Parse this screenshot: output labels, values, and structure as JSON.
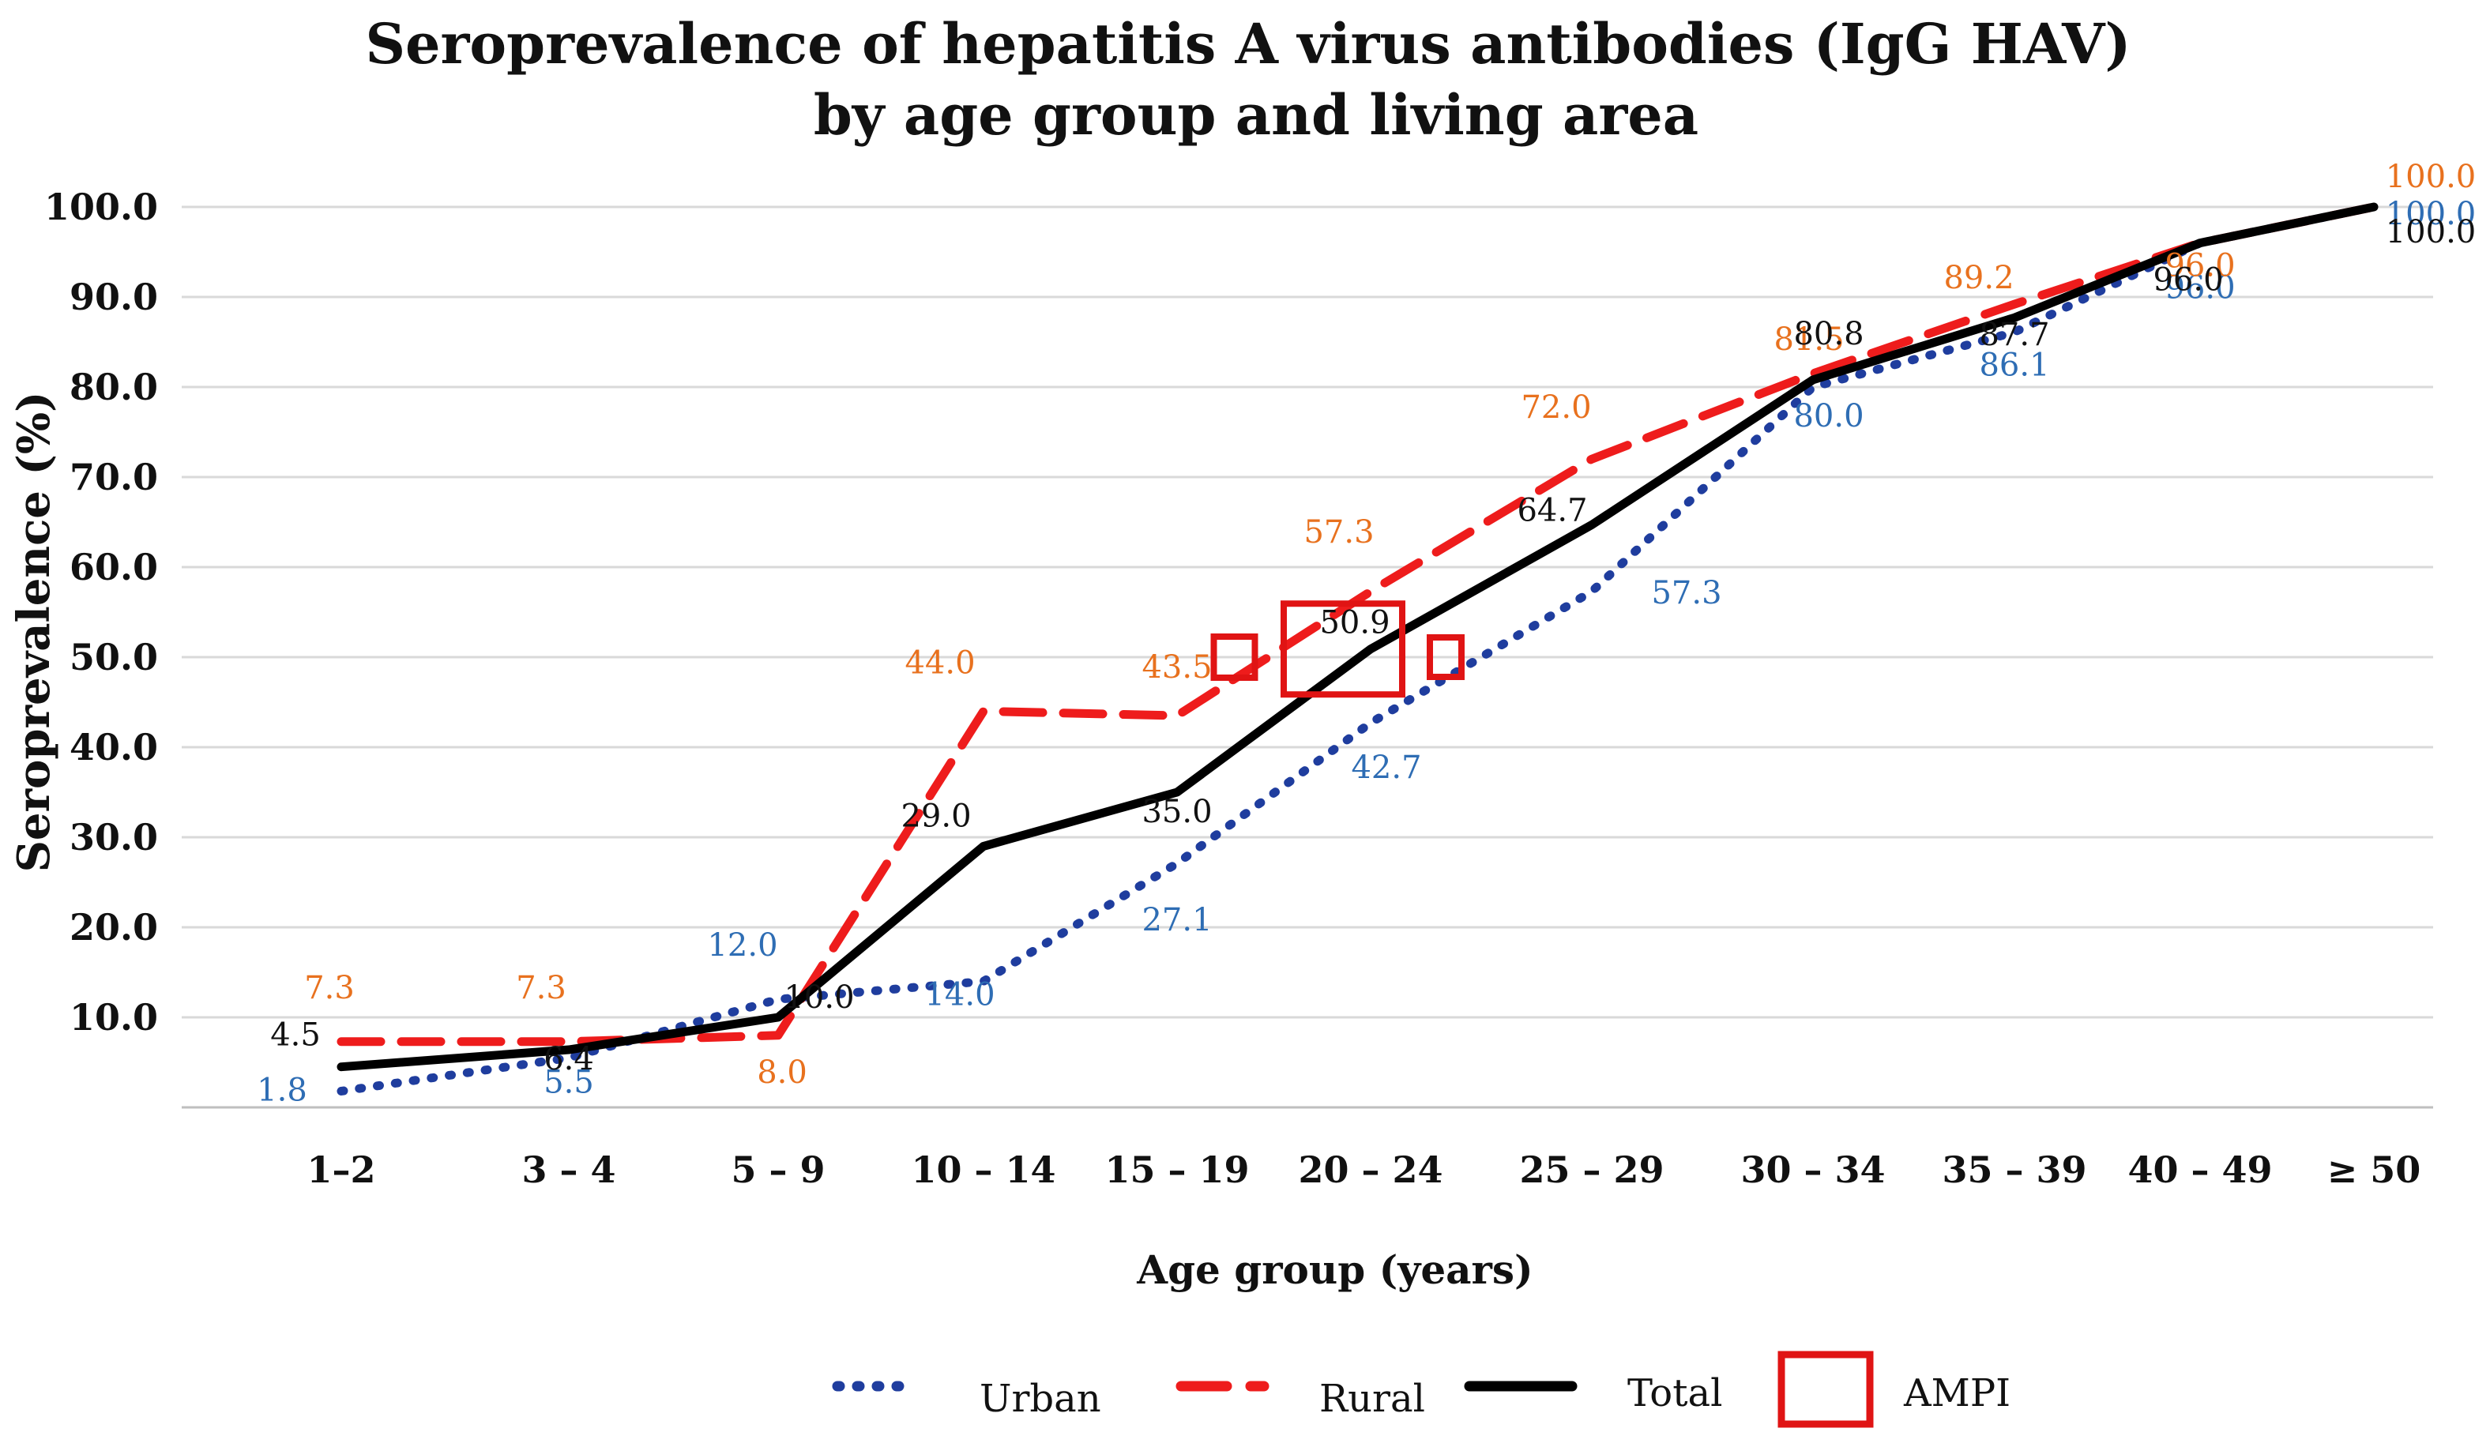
{
  "chart_data": {
    "type": "line",
    "title_line1": "Seroprevalence of hepatitis A virus antibodies (IgG HAV)",
    "title_line2": "by age group and living area",
    "xlabel": "Age group (years)",
    "ylabel": "Seroprevalence (%)",
    "ylim": [
      0,
      100
    ],
    "yticks": [
      "10.0",
      "20.0",
      "30.0",
      "40.0",
      "50.0",
      "60.0",
      "70.0",
      "80.0",
      "90.0",
      "100.0"
    ],
    "ytick_values": [
      10,
      20,
      30,
      40,
      50,
      60,
      70,
      80,
      90,
      100
    ],
    "categories": [
      "1–2",
      "3 – 4",
      "5 – 9",
      "10 – 14",
      "15 – 19",
      "20 – 24",
      "25 – 29",
      "30 – 34",
      "35 – 39",
      "40 – 49",
      "≥ 50"
    ],
    "series": [
      {
        "name": "Urban",
        "color": "#1f3d9e",
        "label_color": "#2e6db4",
        "style": "dotted",
        "values": [
          1.8,
          5.5,
          12.0,
          14.0,
          27.1,
          42.7,
          57.3,
          80.0,
          86.1,
          96.0,
          100.0
        ],
        "labels": [
          "1.8",
          "5.5",
          "12.0",
          "14.0",
          "27.1",
          "42.7",
          "57.3",
          "80.0",
          "86.1",
          "96.0",
          "100.0"
        ]
      },
      {
        "name": "Rural",
        "color": "#ee1c1c",
        "label_color": "#e8711e",
        "style": "dashed",
        "values": [
          7.3,
          7.3,
          8.0,
          44.0,
          43.5,
          57.3,
          72.0,
          81.5,
          89.2,
          96.0,
          100.0
        ],
        "labels": [
          "7.3",
          "7.3",
          "8.0",
          "44.0",
          "43.5",
          "57.3",
          "72.0",
          "81.5",
          "89.2",
          "96.0",
          "100.0"
        ]
      },
      {
        "name": "Total",
        "color": "#000000",
        "label_color": "#111111",
        "style": "solid",
        "values": [
          4.5,
          6.4,
          10.0,
          29.0,
          35.0,
          50.9,
          64.7,
          80.8,
          87.7,
          96.0,
          100.0
        ],
        "labels": [
          "4.5",
          "6.4",
          "10.0",
          "29.0",
          "35.0",
          "50.9",
          "64.7",
          "80.8",
          "87.7",
          "96.0",
          "100.0"
        ]
      }
    ],
    "ampi": {
      "name": "AMPI",
      "color": "#e01414",
      "markers": [
        {
          "series": "Rural",
          "between": [
            "15 – 19",
            "20 – 24"
          ],
          "value": 50
        },
        {
          "series": "Total",
          "category": "20 – 24",
          "value": 50.9
        },
        {
          "series": "Urban",
          "between": [
            "20 – 24",
            "25 – 29"
          ],
          "value": 50
        }
      ]
    },
    "grid": true,
    "legend": "bottom-center",
    "legend_items": [
      "Urban",
      "Rural",
      "Total",
      "AMPI"
    ]
  }
}
